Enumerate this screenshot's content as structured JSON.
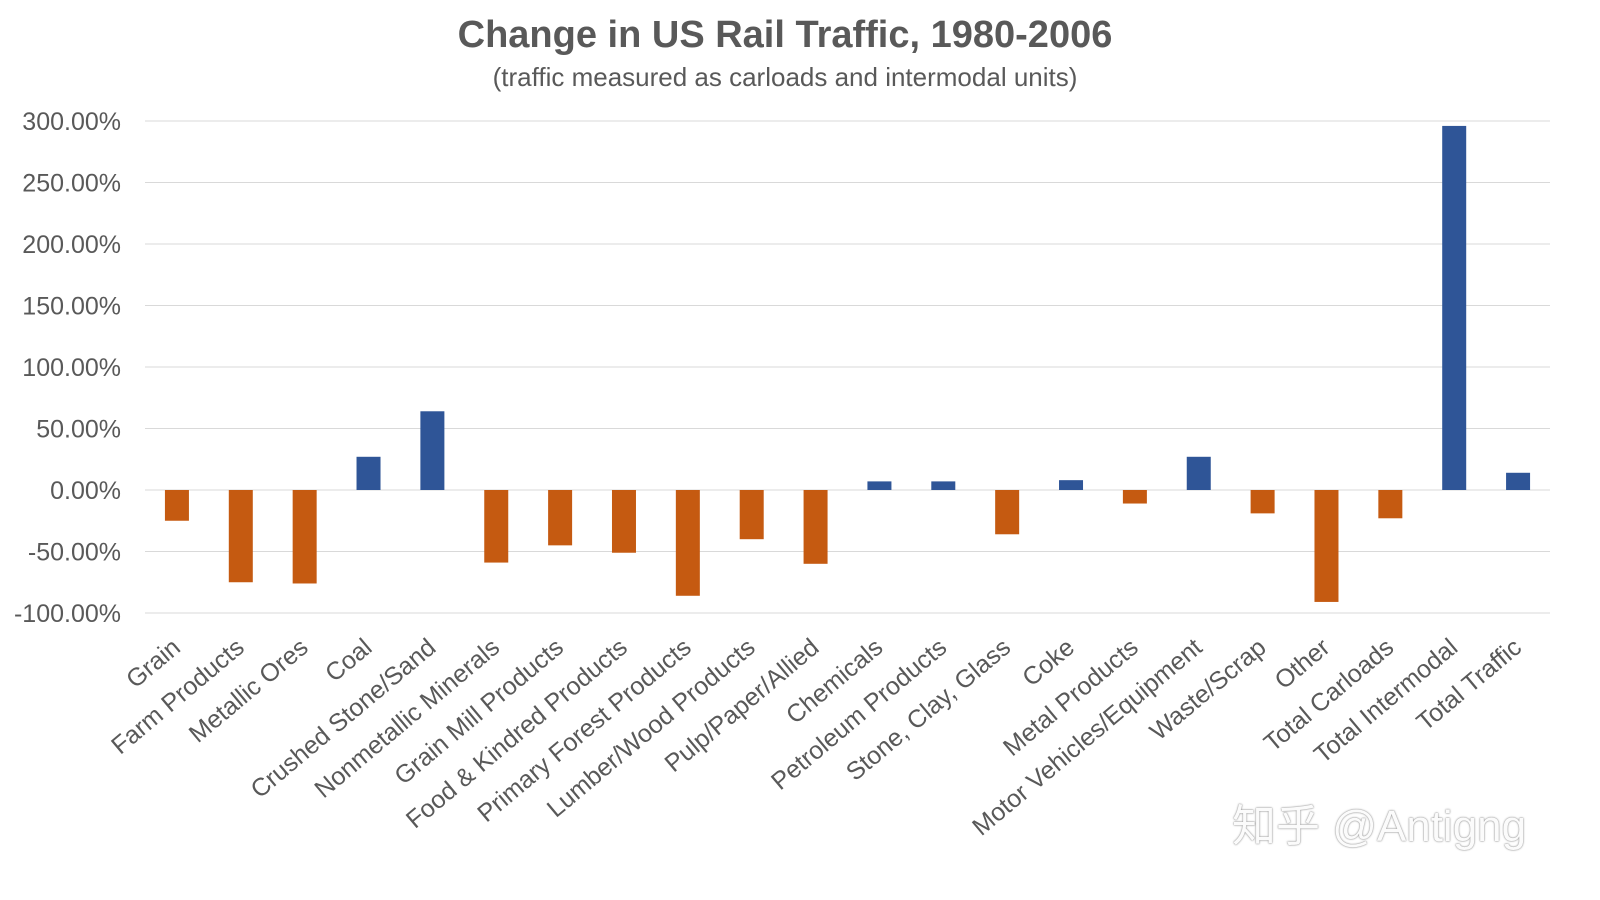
{
  "chart_data": {
    "type": "bar",
    "title": "Change in US Rail Traffic, 1980-2006",
    "subtitle": "(traffic measured as carloads and intermodal units)",
    "xlabel": "",
    "ylabel": "",
    "ylim": [
      -100,
      300
    ],
    "yticks": [
      300,
      250,
      200,
      150,
      100,
      50,
      0,
      -50,
      -100
    ],
    "ytick_labels": [
      "300.00%",
      "250.00%",
      "200.00%",
      "150.00%",
      "100.00%",
      "50.00%",
      "0.00%",
      "-50.00%",
      "-100.00%"
    ],
    "grid": true,
    "categories": [
      "Grain",
      "Farm Products",
      "Metallic Ores",
      "Coal",
      "Crushed Stone/Sand",
      "Nonmetallic Minerals",
      "Grain Mill Products",
      "Food & Kindred Products",
      "Primary Forest Products",
      "Lumber/Wood Products",
      "Pulp/Paper/Allied",
      "Chemicals",
      "Petroleum Products",
      "Stone, Clay, Glass",
      "Coke",
      "Metal Products",
      "Motor Vehicles/Equipment",
      "Waste/Scrap",
      "Other",
      "Total Carloads",
      "Total Intermodal",
      "Total Traffic"
    ],
    "values": [
      -25,
      -75,
      -76,
      27,
      64,
      -59,
      -45,
      -51,
      -86,
      -40,
      -60,
      7,
      7,
      -36,
      8,
      -11,
      27,
      -19,
      -91,
      -23,
      296,
      14
    ],
    "colors": {
      "positive": "#2F5597",
      "negative": "#C55A11",
      "grid": "#D9D9D9",
      "text": "#595959"
    }
  },
  "watermark": "知乎 @Antigng"
}
